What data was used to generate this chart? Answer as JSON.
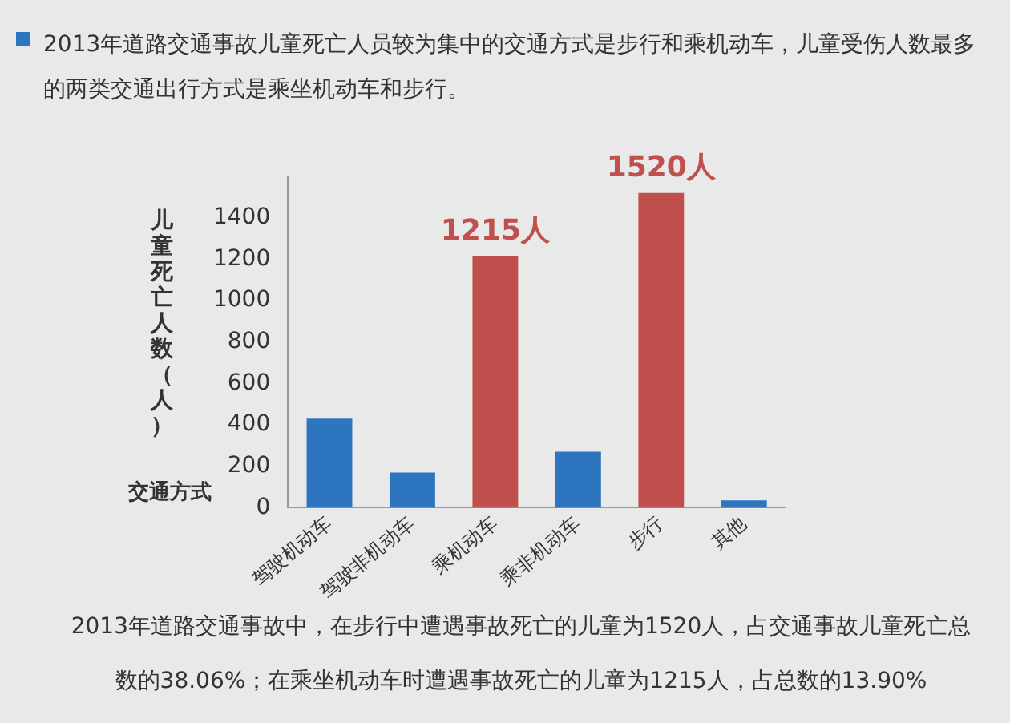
{
  "chart_data": {
    "type": "bar",
    "title": "2013年道路交通事故儿童死亡人员较为集中的交通方式是步行和乘机动车，儿童受伤人数最多的两类交通出行方式是乘坐机动车和步行。",
    "xlabel": "交通方式",
    "ylabel": "儿童死亡人数（人）",
    "categories": [
      "驾驶机动车",
      "驾驶非机动车",
      "乘机动车",
      "乘非机动车",
      "步行",
      "其他"
    ],
    "values": [
      430,
      170,
      1215,
      270,
      1520,
      35
    ],
    "colors": [
      "#2e75c0",
      "#2e75c0",
      "#c0504d",
      "#2e75c0",
      "#c0504d",
      "#2e75c0"
    ],
    "value_labels": [
      null,
      null,
      "1215人",
      null,
      "1520人",
      null
    ],
    "ylim": [
      0,
      1600
    ],
    "yticks": [
      0,
      200,
      400,
      600,
      800,
      1000,
      1200,
      1400
    ],
    "grid": false,
    "legend": false,
    "annotations": [
      "2013年道路交通事故中，在步行中遭遇事故死亡的儿童为1520人，占交通事故儿童死亡总数的38.06%；在乘坐机动车时遭遇事故死亡的儿童为1215人，占总数的13.90%"
    ]
  }
}
